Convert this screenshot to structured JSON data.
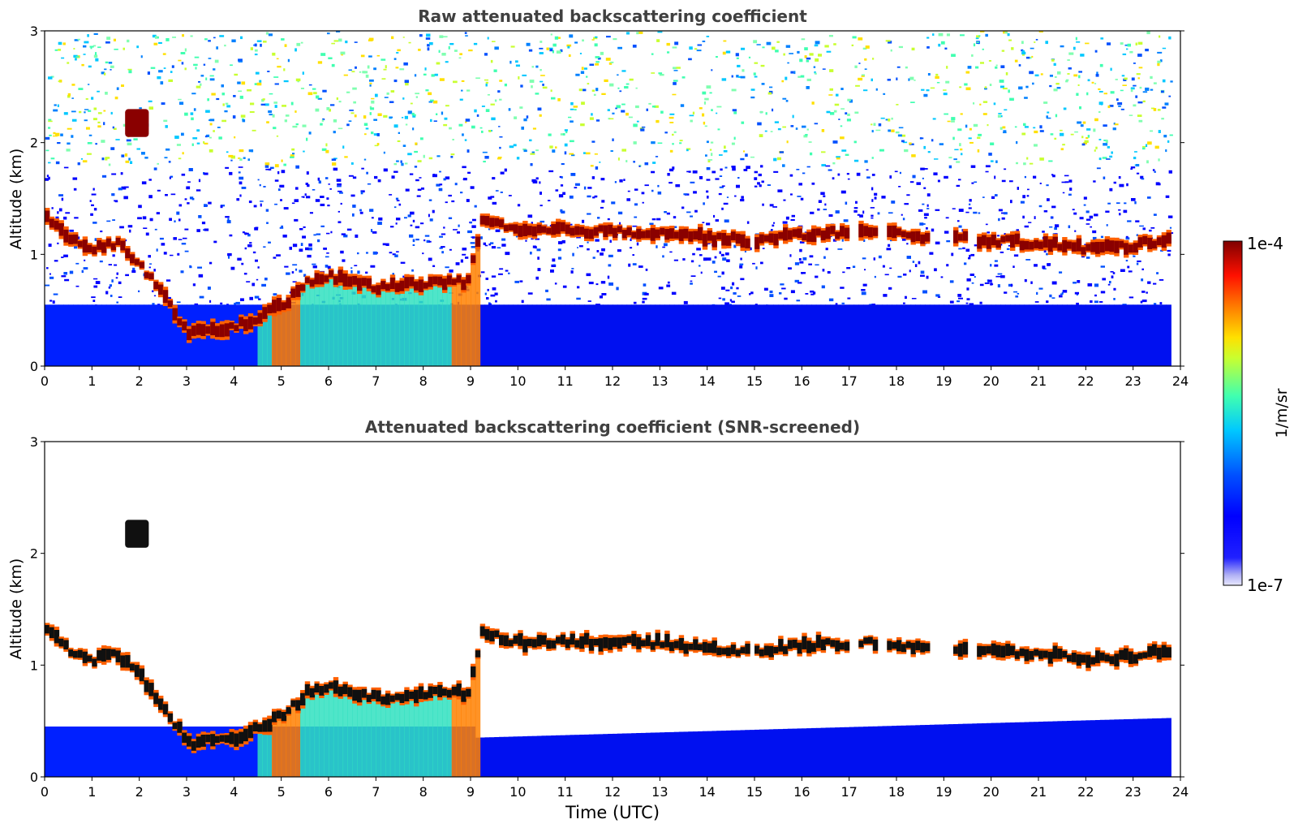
{
  "chart_data": [
    {
      "type": "heatmap",
      "title": "Raw attenuated backscattering coefficient",
      "xlabel": "",
      "ylabel": "Altitude (km)",
      "xlim": [
        0,
        24
      ],
      "ylim": [
        0,
        3
      ],
      "xticks": [
        "0",
        "1",
        "2",
        "3",
        "4",
        "5",
        "6",
        "7",
        "8",
        "9",
        "10",
        "11",
        "12",
        "13",
        "14",
        "15",
        "16",
        "17",
        "18",
        "19",
        "20",
        "21",
        "22",
        "23",
        "24"
      ],
      "yticks": [
        "0",
        "1",
        "2",
        "3"
      ],
      "screened": false,
      "cloud_layer": {
        "t": [
          0,
          0.5,
          1,
          1.5,
          2,
          3,
          4,
          5,
          5.5,
          6,
          7,
          8,
          8.9,
          9.2,
          10,
          11,
          12,
          13,
          14,
          15,
          16,
          17,
          18,
          19,
          20,
          21,
          22,
          23,
          23.8
        ],
        "z": [
          1.35,
          1.12,
          1.05,
          1.1,
          0.9,
          0.3,
          0.35,
          0.55,
          0.75,
          0.8,
          0.7,
          0.75,
          0.75,
          1.3,
          1.2,
          1.22,
          1.2,
          1.2,
          1.15,
          1.12,
          1.18,
          1.2,
          1.18,
          1.15,
          1.12,
          1.1,
          1.05,
          1.08,
          1.15
        ],
        "gaps": [
          [
            14.8,
            14.95
          ],
          [
            16.9,
            17.1
          ],
          [
            17.5,
            17.7
          ],
          [
            18.6,
            19.2
          ],
          [
            19.5,
            19.7
          ]
        ]
      },
      "upper_cloud": {
        "t": [
          1.7,
          2.2
        ],
        "z": [
          2.05,
          2.3
        ]
      },
      "boundary_layer_top_km": 0.55
    },
    {
      "type": "heatmap",
      "title": "Attenuated backscattering coefficient (SNR-screened)",
      "xlabel": "Time (UTC)",
      "ylabel": "Altitude (km)",
      "xlim": [
        0,
        24
      ],
      "ylim": [
        0,
        3
      ],
      "xticks": [
        "0",
        "1",
        "2",
        "3",
        "4",
        "5",
        "6",
        "7",
        "8",
        "9",
        "10",
        "11",
        "12",
        "13",
        "14",
        "15",
        "16",
        "17",
        "18",
        "19",
        "20",
        "21",
        "22",
        "23",
        "24"
      ],
      "yticks": [
        "0",
        "1",
        "2",
        "3"
      ],
      "screened": true,
      "cloud_layer": {
        "t": [
          0,
          0.5,
          1,
          1.5,
          2,
          3,
          4,
          5,
          5.5,
          6,
          7,
          8,
          8.9,
          9.2,
          10,
          11,
          12,
          13,
          14,
          15,
          16,
          17,
          18,
          19,
          20,
          21,
          22,
          23,
          23.8
        ],
        "z": [
          1.35,
          1.12,
          1.05,
          1.1,
          0.9,
          0.3,
          0.35,
          0.55,
          0.75,
          0.8,
          0.7,
          0.75,
          0.75,
          1.3,
          1.2,
          1.22,
          1.2,
          1.2,
          1.15,
          1.12,
          1.18,
          1.2,
          1.18,
          1.15,
          1.12,
          1.1,
          1.05,
          1.08,
          1.15
        ],
        "gaps": [
          [
            14.8,
            14.95
          ],
          [
            16.9,
            17.1
          ],
          [
            17.5,
            17.7
          ],
          [
            18.6,
            19.2
          ],
          [
            19.5,
            19.7
          ]
        ]
      },
      "upper_cloud": {
        "t": [
          1.7,
          2.2
        ],
        "z": [
          2.05,
          2.3
        ]
      },
      "boundary_layer_top_km": 0.55
    }
  ],
  "colorbar": {
    "label": "1/m/sr",
    "max_label": "1e-4",
    "min_label": "1e-7",
    "colormap": "jet",
    "stops": [
      "#00007f",
      "#0000ff",
      "#0080ff",
      "#00ffff",
      "#80ff80",
      "#ffff00",
      "#ff8000",
      "#ff0000",
      "#7f0000"
    ]
  }
}
